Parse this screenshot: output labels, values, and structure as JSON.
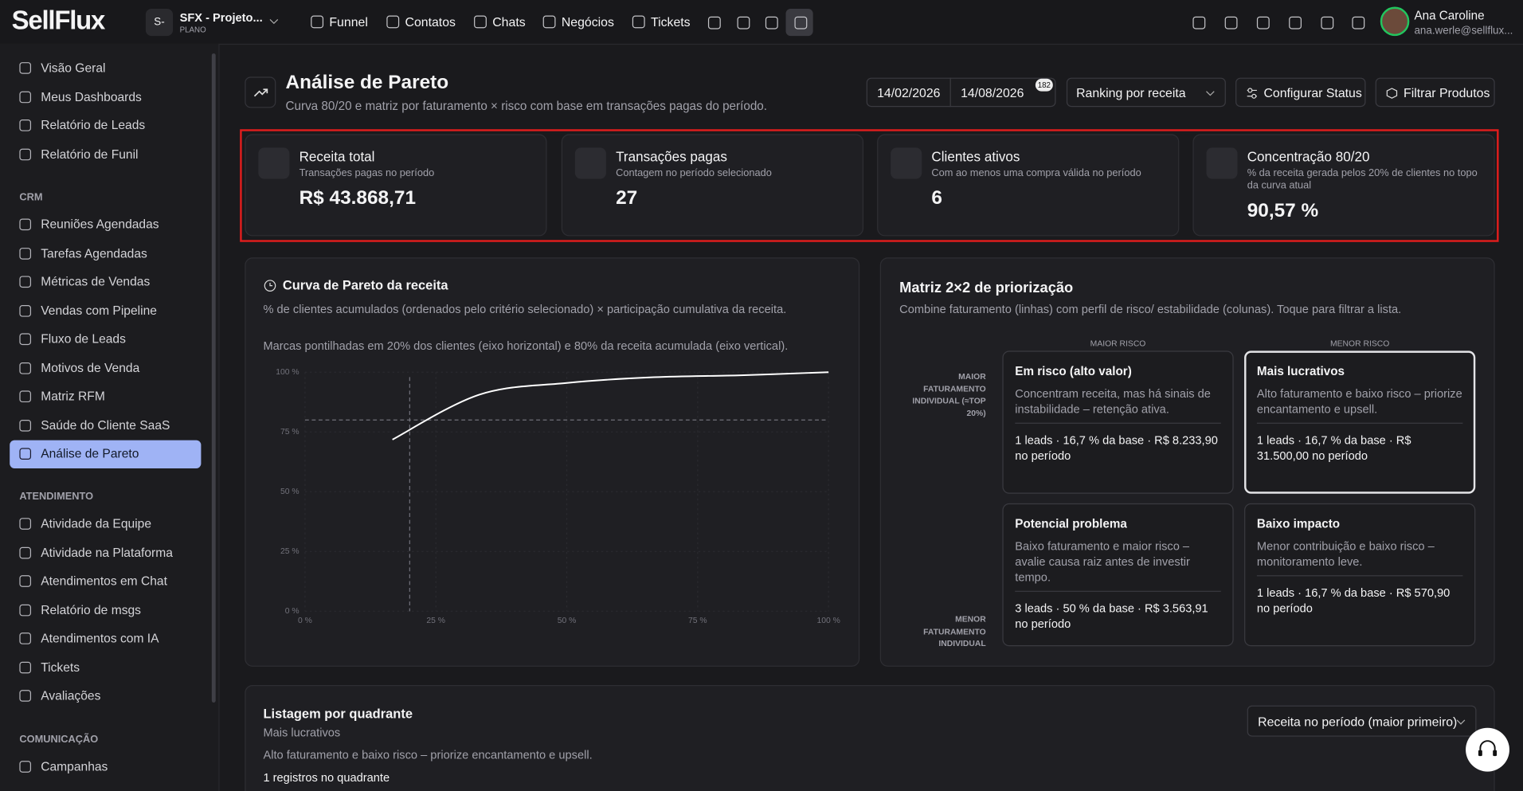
{
  "topbar": {
    "logo": "SellFlux",
    "project_initial": "S-",
    "project": "SFX - Projeto...",
    "plan": "PLANO",
    "nav": [
      "Funnel",
      "Contatos",
      "Chats",
      "Negócios",
      "Tickets"
    ],
    "user_name": "Ana Caroline",
    "user_email": "ana.werle@sellflux..."
  },
  "sidebar": {
    "items": [
      "Visão Geral",
      "Meus Dashboards",
      "Relatório de Leads",
      "Relatório de Funil"
    ],
    "sections": [
      {
        "title": "CRM",
        "items": [
          "Reuniões Agendadas",
          "Tarefas Agendadas",
          "Métricas de Vendas",
          "Vendas com Pipeline",
          "Fluxo de Leads",
          "Motivos de Venda",
          "Matriz RFM",
          "Saúde do Cliente SaaS",
          "Análise de Pareto"
        ]
      },
      {
        "title": "ATENDIMENTO",
        "items": [
          "Atividade da Equipe",
          "Atividade na Plataforma",
          "Atendimentos em Chat",
          "Relatório de msgs",
          "Atendimentos com IA",
          "Tickets",
          "Avaliações"
        ]
      },
      {
        "title": "COMUNICAÇÃO",
        "items": [
          "Campanhas"
        ]
      }
    ]
  },
  "header": {
    "title": "Análise de Pareto",
    "subtitle": "Curva 80/20 e matriz por faturamento × risco com base em transações pagas do período.",
    "date_start": "14/02/2026",
    "date_end": "14/08/2026",
    "badge": "182",
    "ranking": "Ranking por receita",
    "configure": "Configurar Status",
    "filter": "Filtrar Produtos"
  },
  "kpis": [
    {
      "label": "Receita total",
      "sublabel": "Transações pagas no período",
      "value": "R$ 43.868,71"
    },
    {
      "label": "Transações pagas",
      "sublabel": "Contagem no período selecionado",
      "value": "27"
    },
    {
      "label": "Clientes ativos",
      "sublabel": "Com ao menos uma compra válida no período",
      "value": "6"
    },
    {
      "label": "Concentração 80/20",
      "sublabel": "% da receita gerada pelos 20% de clientes no topo da curva atual",
      "value": "90,57 %"
    }
  ],
  "chart_data": {
    "type": "line",
    "title": "Curva de Pareto da receita",
    "subtitle": "% de clientes acumulados (ordenados pelo critério selecionado) × participação cumulativa da receita.",
    "note": "Marcas pontilhadas em 20% dos clientes (eixo horizontal) e 80% da receita acumulada (eixo vertical).",
    "x": [
      16.7,
      33.3,
      50,
      66.7,
      83.3,
      100
    ],
    "values": [
      71.8,
      90.6,
      95.5,
      97.9,
      98.7,
      100
    ],
    "color": "#ffffff",
    "xlim": [
      0,
      100
    ],
    "ylim": [
      0,
      100
    ],
    "xticks": [
      {
        "value": 0,
        "label": "0 %"
      },
      {
        "value": 25,
        "label": "25 %"
      },
      {
        "value": 50,
        "label": "50 %"
      },
      {
        "value": 75,
        "label": "75 %"
      },
      {
        "value": 100,
        "label": "100 %"
      }
    ],
    "yticks": [
      {
        "value": 0,
        "label": "0 %"
      },
      {
        "value": 25,
        "label": "25 %"
      },
      {
        "value": 50,
        "label": "50 %"
      },
      {
        "value": 75,
        "label": "75 %"
      },
      {
        "value": 100,
        "label": "100 %"
      }
    ],
    "reference_x": 20,
    "reference_y": 80,
    "grid": true
  },
  "matrix": {
    "title": "Matriz 2×2 de priorização",
    "subtitle": "Combine faturamento (linhas) com perfil de risco/ estabilidade (colunas). Toque para filtrar a lista.",
    "col_labels": [
      "MAIOR RISCO",
      "MENOR RISCO"
    ],
    "row_labels": [
      "MAIOR FATURAMENTO INDIVIDUAL (≈TOP 20%)",
      "MENOR FATURAMENTO INDIVIDUAL"
    ],
    "cells": [
      {
        "title": "Em risco (alto valor)",
        "description": "Concentram receita, mas há sinais de instabilidade – retenção ativa.",
        "stats": "1 leads · 16,7 % da base · R$ 8.233,90 no período"
      },
      {
        "title": "Mais lucrativos",
        "description": "Alto faturamento e baixo risco – priorize encantamento e upsell.",
        "stats": "1 leads · 16,7 % da base · R$ 31.500,00 no período"
      },
      {
        "title": "Potencial problema",
        "description": "Baixo faturamento e maior risco – avalie causa raiz antes de investir tempo.",
        "stats": "3 leads · 50 % da base · R$ 3.563,91 no período"
      },
      {
        "title": "Baixo impacto",
        "description": "Menor contribuição e baixo risco – monitoramento leve.",
        "stats": "1 leads · 16,7 % da base · R$ 570,90 no período"
      }
    ]
  },
  "listing": {
    "title": "Listagem por quadrante",
    "quadrant": "Mais lucrativos",
    "description": "Alto faturamento e baixo risco – priorize encantamento e upsell.",
    "count": "1 registros no quadrante",
    "sort": "Receita no período (maior primeiro)"
  }
}
